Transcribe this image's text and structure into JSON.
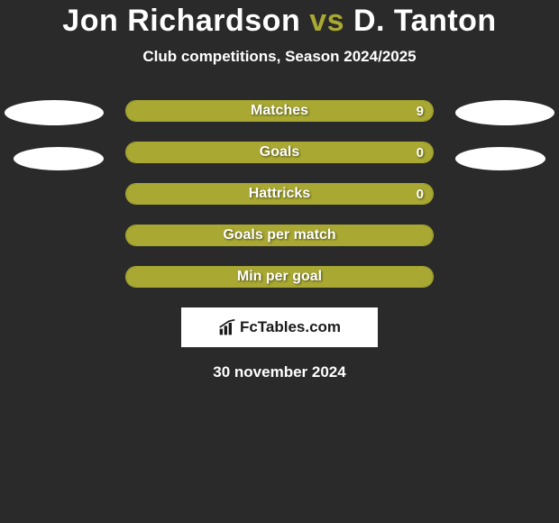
{
  "title": {
    "player1": "Jon Richardson",
    "vs": "vs",
    "player2": "D. Tanton"
  },
  "subtitle": "Club competitions, Season 2024/2025",
  "colors": {
    "accent": "#a8a832",
    "background": "#2a2a2a",
    "text": "#ffffff",
    "ellipse": "#ffffff"
  },
  "bars": [
    {
      "label": "Matches",
      "value": "9",
      "left_pct": 0,
      "right_pct": 100
    },
    {
      "label": "Goals",
      "value": "0",
      "left_pct": 100,
      "right_pct": 0
    },
    {
      "label": "Hattricks",
      "value": "0",
      "left_pct": 0,
      "right_pct": 100
    },
    {
      "label": "Goals per match",
      "value": "",
      "left_pct": 100,
      "right_pct": 0
    },
    {
      "label": "Min per goal",
      "value": "",
      "left_pct": 100,
      "right_pct": 0
    }
  ],
  "logo": {
    "text": "FcTables.com"
  },
  "date": "30 november 2024"
}
